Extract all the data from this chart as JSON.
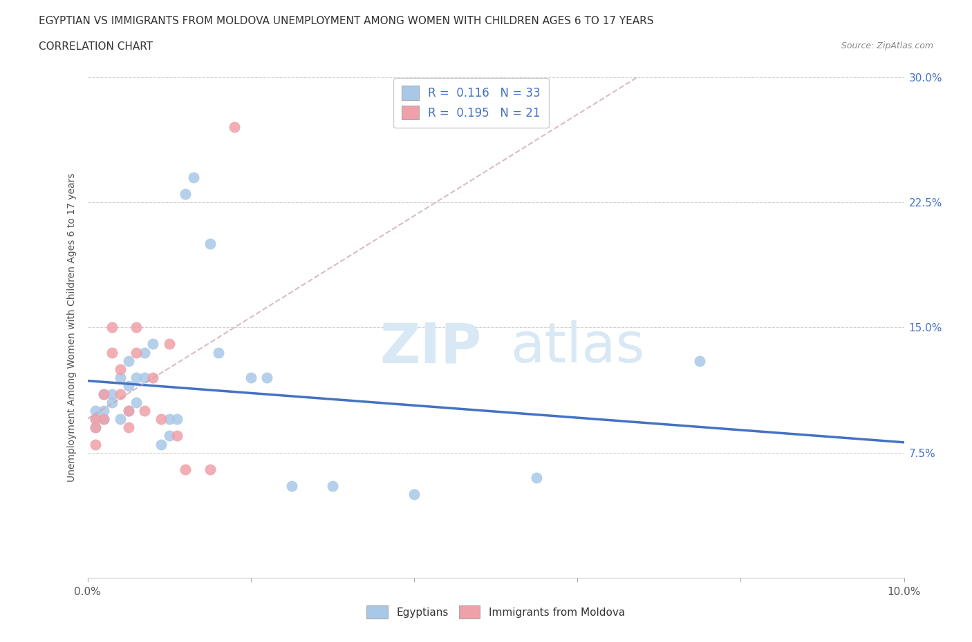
{
  "title_line1": "EGYPTIAN VS IMMIGRANTS FROM MOLDOVA UNEMPLOYMENT AMONG WOMEN WITH CHILDREN AGES 6 TO 17 YEARS",
  "title_line2": "CORRELATION CHART",
  "source": "Source: ZipAtlas.com",
  "ylabel": "Unemployment Among Women with Children Ages 6 to 17 years",
  "xlim": [
    0.0,
    0.1
  ],
  "ylim": [
    0.0,
    0.3
  ],
  "xticks": [
    0.0,
    0.02,
    0.04,
    0.06,
    0.08,
    0.1
  ],
  "xticklabels": [
    "0.0%",
    "",
    "",
    "",
    "",
    "10.0%"
  ],
  "yticks": [
    0.0,
    0.075,
    0.15,
    0.225,
    0.3
  ],
  "yticklabels": [
    "",
    "7.5%",
    "15.0%",
    "22.5%",
    "30.0%"
  ],
  "blue_color": "#A8C8E8",
  "pink_color": "#F0A0A8",
  "blue_line_color": "#4472C4",
  "pink_line_color": "#E07080",
  "legend_r_blue": "0.116",
  "legend_n_blue": "33",
  "legend_r_pink": "0.195",
  "legend_n_pink": "21",
  "blue_scatter_x": [
    0.001,
    0.001,
    0.001,
    0.002,
    0.002,
    0.002,
    0.003,
    0.003,
    0.004,
    0.004,
    0.005,
    0.005,
    0.005,
    0.006,
    0.006,
    0.007,
    0.007,
    0.008,
    0.009,
    0.01,
    0.01,
    0.011,
    0.012,
    0.013,
    0.015,
    0.016,
    0.02,
    0.022,
    0.025,
    0.03,
    0.04,
    0.055,
    0.075
  ],
  "blue_scatter_y": [
    0.1,
    0.095,
    0.09,
    0.11,
    0.1,
    0.095,
    0.11,
    0.105,
    0.12,
    0.095,
    0.13,
    0.115,
    0.1,
    0.12,
    0.105,
    0.135,
    0.12,
    0.14,
    0.08,
    0.095,
    0.085,
    0.095,
    0.23,
    0.24,
    0.2,
    0.135,
    0.12,
    0.12,
    0.055,
    0.055,
    0.05,
    0.06,
    0.13
  ],
  "pink_scatter_x": [
    0.001,
    0.001,
    0.001,
    0.002,
    0.002,
    0.003,
    0.003,
    0.004,
    0.004,
    0.005,
    0.005,
    0.006,
    0.006,
    0.007,
    0.008,
    0.009,
    0.01,
    0.011,
    0.012,
    0.015,
    0.018
  ],
  "pink_scatter_y": [
    0.095,
    0.09,
    0.08,
    0.11,
    0.095,
    0.15,
    0.135,
    0.125,
    0.11,
    0.1,
    0.09,
    0.15,
    0.135,
    0.1,
    0.12,
    0.095,
    0.14,
    0.085,
    0.065,
    0.065,
    0.27
  ]
}
